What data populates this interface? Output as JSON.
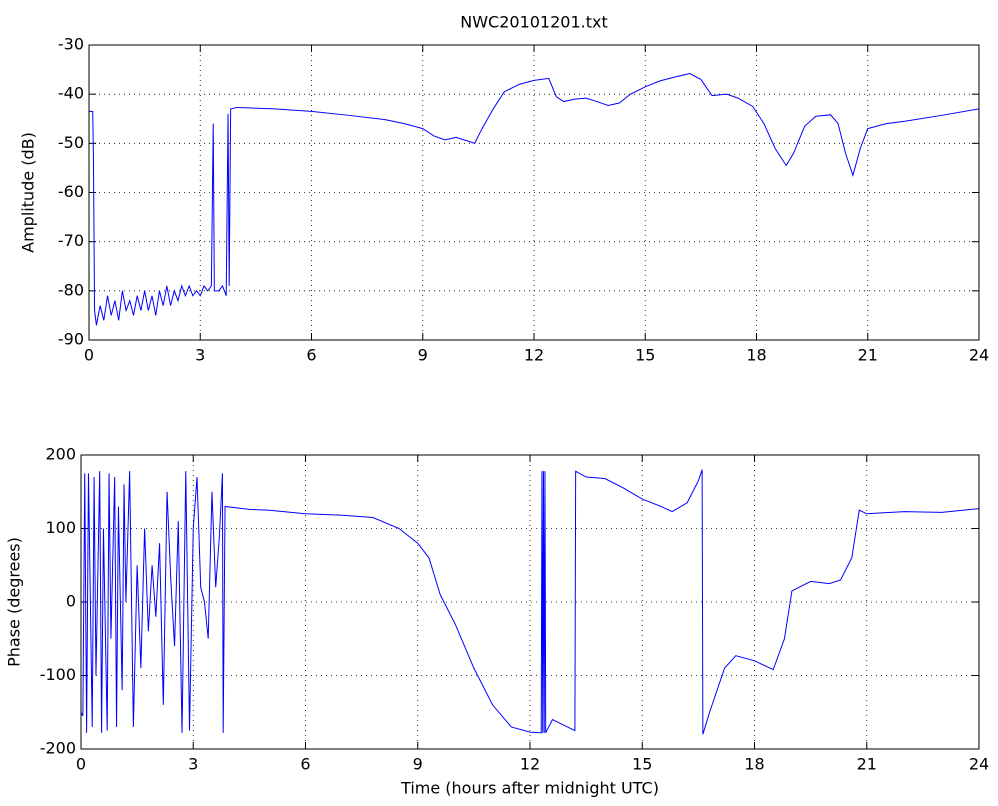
{
  "chart_data": [
    {
      "type": "line",
      "title": "NWC20101201.txt",
      "ylabel": "Amplitude (dB)",
      "color": "#0000ff",
      "grid": true,
      "xlim": [
        0,
        24
      ],
      "xticks": [
        0,
        3,
        6,
        9,
        12,
        15,
        18,
        21,
        24
      ],
      "ylim": [
        -90,
        -30
      ],
      "yticks": [
        -90,
        -80,
        -70,
        -60,
        -50,
        -40,
        -30
      ],
      "x": [
        0,
        0.1,
        0.12,
        0.15,
        0.2,
        0.3,
        0.4,
        0.5,
        0.6,
        0.7,
        0.8,
        0.9,
        1.0,
        1.1,
        1.2,
        1.3,
        1.4,
        1.5,
        1.6,
        1.7,
        1.8,
        1.9,
        2.0,
        2.1,
        2.2,
        2.3,
        2.4,
        2.5,
        2.6,
        2.7,
        2.8,
        2.9,
        3.0,
        3.1,
        3.2,
        3.3,
        3.35,
        3.38,
        3.5,
        3.6,
        3.7,
        3.75,
        3.78,
        3.82,
        4,
        5,
        6,
        7,
        8,
        8.5,
        9,
        9.3,
        9.6,
        9.9,
        10.2,
        10.4,
        10.6,
        10.9,
        11.2,
        11.6,
        12,
        12.4,
        12.6,
        12.8,
        13.1,
        13.4,
        13.7,
        14,
        14.3,
        14.6,
        15,
        15.4,
        15.8,
        16.2,
        16.5,
        16.8,
        17.2,
        17.5,
        17.9,
        18.2,
        18.5,
        18.8,
        19,
        19.3,
        19.6,
        20,
        20.2,
        20.4,
        20.6,
        20.8,
        21,
        21.5,
        22,
        23,
        24
      ],
      "values": [
        -43.5,
        -43.5,
        -53,
        -84,
        -87,
        -83,
        -86,
        -81,
        -85,
        -82,
        -86,
        -80,
        -84,
        -82,
        -85,
        -81,
        -84,
        -80,
        -84,
        -81,
        -85,
        -80,
        -83,
        -79,
        -83,
        -80,
        -82,
        -79,
        -81,
        -79,
        -81,
        -80,
        -81,
        -79,
        -80,
        -79,
        -46,
        -80,
        -80,
        -79,
        -81,
        -44,
        -79,
        -43,
        -42.7,
        -43,
        -43.5,
        -44.3,
        -45.2,
        -46,
        -47,
        -48.5,
        -49.3,
        -48.8,
        -49.5,
        -50,
        -47,
        -43,
        -39.5,
        -38,
        -37.2,
        -36.8,
        -40.5,
        -41.5,
        -41,
        -40.8,
        -41.5,
        -42.3,
        -41.8,
        -40,
        -38.5,
        -37.3,
        -36.5,
        -35.8,
        -37,
        -40.3,
        -40,
        -40.8,
        -42.5,
        -46,
        -51,
        -54.5,
        -52,
        -46.5,
        -44.5,
        -44.2,
        -46,
        -52,
        -56.5,
        -51,
        -47,
        -46,
        -45.5,
        -44.3,
        -43
      ]
    },
    {
      "type": "line",
      "xlabel": "Time (hours after midnight UTC)",
      "ylabel": "Phase (degrees)",
      "color": "#0000ff",
      "grid": true,
      "xlim": [
        0,
        24
      ],
      "xticks": [
        0,
        3,
        6,
        9,
        12,
        15,
        18,
        21,
        24
      ],
      "ylim": [
        -200,
        200
      ],
      "yticks": [
        -200,
        -100,
        0,
        100,
        200
      ],
      "x": [
        0,
        0.05,
        0.1,
        0.15,
        0.2,
        0.3,
        0.35,
        0.4,
        0.5,
        0.55,
        0.6,
        0.7,
        0.75,
        0.8,
        0.9,
        0.95,
        1.0,
        1.1,
        1.15,
        1.2,
        1.3,
        1.4,
        1.5,
        1.6,
        1.7,
        1.8,
        1.9,
        2.0,
        2.1,
        2.2,
        2.3,
        2.4,
        2.5,
        2.6,
        2.7,
        2.8,
        2.9,
        3.0,
        3.1,
        3.2,
        3.3,
        3.4,
        3.5,
        3.6,
        3.7,
        3.78,
        3.8,
        3.85,
        4.5,
        5,
        6,
        7,
        7.8,
        8.5,
        9,
        9.3,
        9.6,
        10,
        10.5,
        11,
        11.5,
        12,
        12.3,
        12.32,
        12.34,
        12.36,
        12.38,
        12.4,
        12.42,
        12.6,
        13,
        13.2,
        13.22,
        13.5,
        14,
        14.5,
        15,
        15.5,
        15.8,
        16.2,
        16.5,
        16.6,
        16.62,
        16.8,
        17.2,
        17.5,
        18,
        18.5,
        18.8,
        19,
        19.5,
        20,
        20.3,
        20.6,
        20.8,
        21,
        22,
        23,
        24
      ],
      "values": [
        -150,
        -155,
        175,
        -178,
        175,
        -170,
        170,
        -100,
        178,
        -178,
        100,
        -175,
        175,
        -50,
        170,
        -170,
        130,
        -120,
        160,
        0,
        178,
        -170,
        50,
        -90,
        100,
        -40,
        50,
        -20,
        80,
        -140,
        150,
        30,
        -60,
        110,
        -178,
        178,
        -175,
        100,
        170,
        20,
        0,
        -50,
        150,
        20,
        90,
        175,
        -178,
        130,
        126,
        125,
        120,
        118,
        115,
        100,
        80,
        60,
        10,
        -30,
        -90,
        -140,
        -170,
        -177,
        -178,
        178,
        -178,
        178,
        -178,
        178,
        -178,
        -160,
        -170,
        -175,
        178,
        170,
        168,
        155,
        140,
        130,
        123,
        135,
        165,
        180,
        -180,
        -150,
        -90,
        -73,
        -80,
        -92,
        -50,
        15,
        28,
        25,
        30,
        60,
        125,
        120,
        123,
        122,
        127
      ]
    }
  ]
}
